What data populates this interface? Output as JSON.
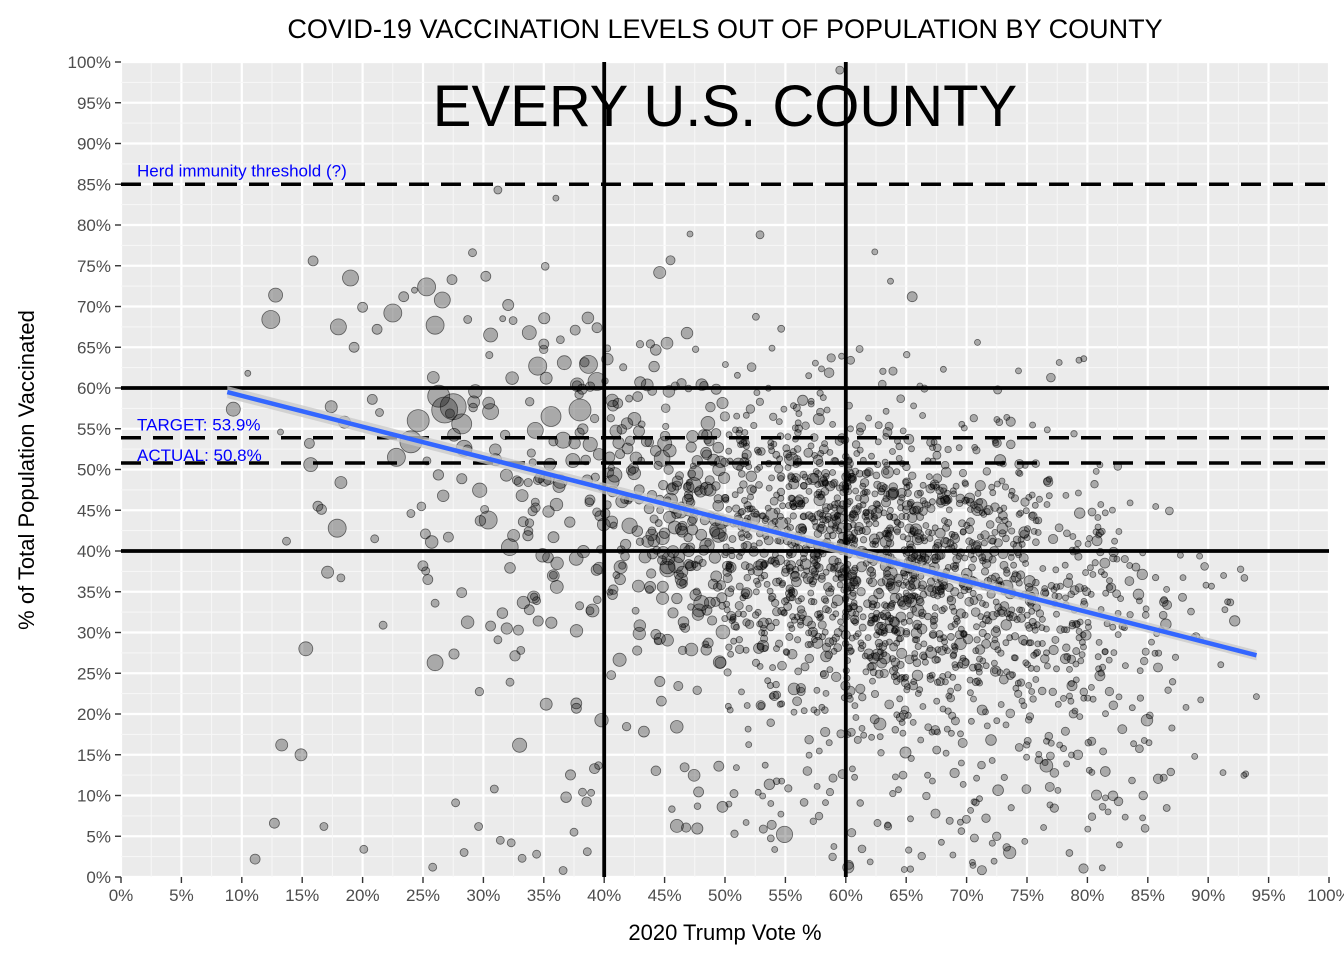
{
  "chart_data": {
    "type": "scatter",
    "title": "COVID-19 VACCINATION LEVELS OUT OF POPULATION BY COUNTY",
    "xlabel": "2020 Trump Vote %",
    "ylabel": "% of Total Population Vaccinated",
    "xlim": [
      0,
      100
    ],
    "ylim": [
      0,
      100
    ],
    "x_ticks": [
      "0%",
      "5%",
      "10%",
      "15%",
      "20%",
      "25%",
      "30%",
      "35%",
      "40%",
      "45%",
      "50%",
      "55%",
      "60%",
      "65%",
      "70%",
      "75%",
      "80%",
      "85%",
      "90%",
      "95%",
      "100%"
    ],
    "y_ticks": [
      "0%",
      "5%",
      "10%",
      "15%",
      "20%",
      "25%",
      "30%",
      "35%",
      "40%",
      "45%",
      "50%",
      "55%",
      "60%",
      "65%",
      "70%",
      "75%",
      "80%",
      "85%",
      "90%",
      "95%",
      "100%"
    ],
    "grid": true,
    "background": "#ebebeb",
    "annotation_main": "EVERY U.S. COUNTY",
    "reference_lines": [
      {
        "orientation": "horizontal",
        "value": 85,
        "style": "dashed",
        "label": "Herd immunity threshold (?)"
      },
      {
        "orientation": "horizontal",
        "value": 53.9,
        "style": "dashed",
        "label": "TARGET: 53.9%"
      },
      {
        "orientation": "horizontal",
        "value": 50.8,
        "style": "dashed",
        "label": "ACTUAL: 50.8%"
      },
      {
        "orientation": "horizontal",
        "value": 60,
        "style": "solid",
        "label": ""
      },
      {
        "orientation": "horizontal",
        "value": 40,
        "style": "solid",
        "label": ""
      },
      {
        "orientation": "vertical",
        "value": 40,
        "style": "solid",
        "label": ""
      },
      {
        "orientation": "vertical",
        "value": 60,
        "style": "solid",
        "label": ""
      }
    ],
    "trend_line": {
      "type": "linear",
      "x": [
        8.8,
        94
      ],
      "y": [
        59.5,
        27.2
      ],
      "color": "#3366ff",
      "band_color": "#c8c8c8"
    },
    "points_description_source": "sampled from the plotted cloud",
    "points": [
      [
        10.5,
        61.8,
        3
      ],
      [
        12.4,
        68.4,
        9
      ],
      [
        12.8,
        71.4,
        7
      ],
      [
        15.9,
        75.6,
        5
      ],
      [
        18.0,
        67.5,
        8
      ],
      [
        19.3,
        65.0,
        5
      ],
      [
        19.0,
        73.5,
        8
      ],
      [
        20.0,
        69.9,
        5
      ],
      [
        21.2,
        67.2,
        5
      ],
      [
        22.5,
        69.2,
        9
      ],
      [
        23.4,
        71.2,
        5
      ],
      [
        24.3,
        72.0,
        3
      ],
      [
        25.3,
        72.4,
        9
      ],
      [
        26.0,
        67.7,
        9
      ],
      [
        26.6,
        70.8,
        8
      ],
      [
        27.4,
        73.3,
        5
      ],
      [
        28.7,
        68.4,
        4
      ],
      [
        29.1,
        76.6,
        4
      ],
      [
        30.2,
        73.7,
        5
      ],
      [
        30.6,
        66.5,
        7
      ],
      [
        31.6,
        68.5,
        3
      ],
      [
        33.8,
        66.8,
        7
      ],
      [
        9.3,
        57.4,
        7
      ],
      [
        13.2,
        54.6,
        3
      ],
      [
        15.6,
        53.2,
        5
      ],
      [
        15.7,
        50.6,
        7
      ],
      [
        16.3,
        45.5,
        5
      ],
      [
        17.4,
        57.7,
        6
      ],
      [
        18.2,
        48.4,
        6
      ],
      [
        18.5,
        55.8,
        6
      ],
      [
        20.8,
        58.6,
        5
      ],
      [
        21.4,
        57.0,
        4
      ],
      [
        22.8,
        51.5,
        9
      ],
      [
        24.0,
        53.4,
        11
      ],
      [
        24.6,
        56.0,
        11
      ],
      [
        26.3,
        59.0,
        11
      ],
      [
        26.8,
        57.3,
        13
      ],
      [
        27.5,
        57.7,
        13
      ],
      [
        28.2,
        55.6,
        10
      ],
      [
        28.4,
        52.6,
        8
      ],
      [
        29.2,
        58.3,
        6
      ],
      [
        30.6,
        57.1,
        8
      ],
      [
        31.0,
        51.2,
        6
      ],
      [
        31.9,
        49.3,
        6
      ],
      [
        33.2,
        46.8,
        6
      ],
      [
        34.3,
        54.8,
        8
      ],
      [
        35.6,
        56.5,
        10
      ],
      [
        36.6,
        53.6,
        8
      ],
      [
        37.4,
        51.1,
        7
      ],
      [
        38.0,
        57.3,
        11
      ],
      [
        38.7,
        62.9,
        9
      ],
      [
        39.4,
        60.8,
        9
      ],
      [
        35.2,
        61.2,
        6
      ],
      [
        36.7,
        63.1,
        7
      ],
      [
        35.0,
        65.4,
        5
      ],
      [
        37.6,
        67.1,
        5
      ],
      [
        39.4,
        67.4,
        5
      ],
      [
        17.9,
        42.8,
        9
      ],
      [
        16.6,
        45.1,
        5
      ],
      [
        13.7,
        41.2,
        4
      ],
      [
        21.0,
        41.5,
        4
      ],
      [
        24.0,
        44.6,
        4
      ],
      [
        25.2,
        42.1,
        5
      ],
      [
        27.1,
        41.7,
        5
      ],
      [
        30.1,
        45.1,
        4
      ],
      [
        30.4,
        43.8,
        9
      ],
      [
        32.5,
        41.9,
        6
      ],
      [
        33.3,
        43.6,
        5
      ],
      [
        34.3,
        46.0,
        4
      ],
      [
        17.1,
        37.4,
        6
      ],
      [
        18.2,
        36.7,
        4
      ],
      [
        25.4,
        36.5,
        5
      ],
      [
        26.0,
        33.6,
        4
      ],
      [
        28.2,
        34.9,
        5
      ],
      [
        30.6,
        30.8,
        5
      ],
      [
        31.2,
        29.1,
        4
      ],
      [
        32.9,
        30.3,
        5
      ],
      [
        33.8,
        32.8,
        5
      ],
      [
        34.4,
        33.9,
        4
      ],
      [
        15.3,
        28.0,
        7
      ],
      [
        21.7,
        30.9,
        4
      ],
      [
        26.0,
        26.3,
        8
      ],
      [
        32.2,
        23.9,
        4
      ],
      [
        33.1,
        27.8,
        4
      ],
      [
        35.2,
        21.2,
        6
      ],
      [
        37.7,
        20.7,
        5
      ],
      [
        13.3,
        16.2,
        6
      ],
      [
        14.9,
        15.0,
        6
      ],
      [
        12.7,
        6.6,
        5
      ],
      [
        11.1,
        2.2,
        5
      ],
      [
        16.8,
        6.2,
        4
      ],
      [
        20.1,
        3.4,
        4
      ],
      [
        25.8,
        1.2,
        4
      ],
      [
        27.7,
        9.1,
        4
      ],
      [
        28.4,
        3.0,
        4
      ],
      [
        29.6,
        6.2,
        4
      ],
      [
        30.9,
        10.8,
        4
      ],
      [
        31.4,
        4.5,
        4
      ],
      [
        32.3,
        4.2,
        4
      ],
      [
        33.2,
        2.3,
        4
      ],
      [
        34.4,
        2.8,
        4
      ],
      [
        36.6,
        0.8,
        4
      ],
      [
        37.5,
        5.5,
        4
      ],
      [
        38.6,
        3.1,
        4
      ],
      [
        38.2,
        10.4,
        4
      ],
      [
        39.2,
        13.3,
        5
      ],
      [
        36.0,
        83.3,
        3
      ],
      [
        31.2,
        84.3,
        4
      ],
      [
        47.1,
        78.9,
        3
      ],
      [
        52.9,
        78.8,
        4
      ],
      [
        59.5,
        99.0,
        4
      ],
      [
        60.4,
        63.4,
        4
      ],
      [
        62.4,
        76.7,
        3
      ],
      [
        63.7,
        73.1,
        3
      ],
      [
        65.5,
        71.2,
        5
      ],
      [
        70.9,
        65.6,
        3
      ],
      [
        74.3,
        62.1,
        3
      ],
      [
        79.7,
        63.6,
        3
      ]
    ],
    "point_count_note": ""
  }
}
